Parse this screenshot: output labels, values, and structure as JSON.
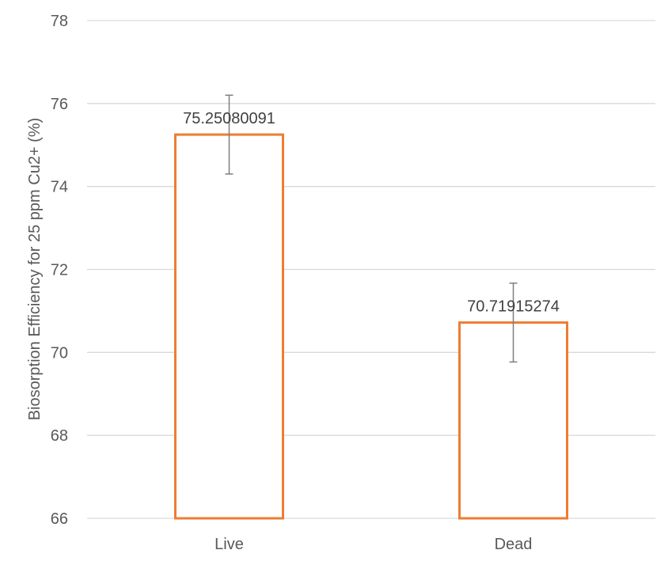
{
  "chart_data": {
    "type": "bar",
    "title": "",
    "xlabel": "",
    "ylabel": "Biosorption Efficiency for 25 ppm Cu2+ (%)",
    "categories": [
      "Live",
      "Dead"
    ],
    "series": [
      {
        "values": [
          75.25080091,
          70.71915274
        ],
        "data_labels": [
          "75.25080091",
          "70.71915274"
        ],
        "error": [
          0.95,
          0.95
        ],
        "color": "#ed7d31"
      }
    ],
    "ylim": [
      66,
      78
    ],
    "yticks": [
      66,
      68,
      70,
      72,
      74,
      76,
      78
    ],
    "grid": true,
    "legend": "none"
  }
}
